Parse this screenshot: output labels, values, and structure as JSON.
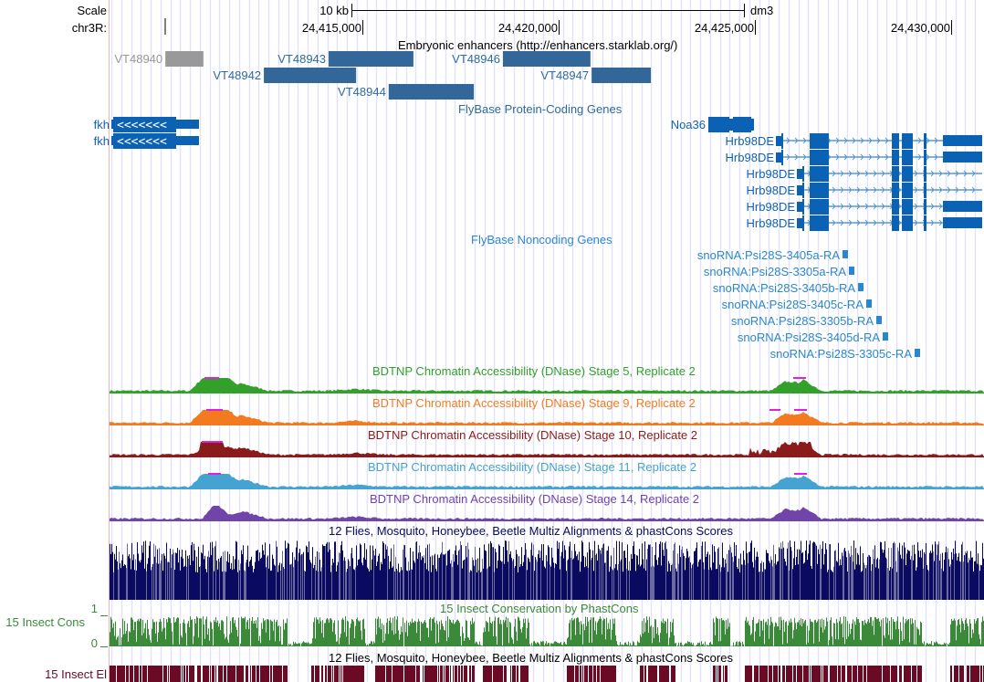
{
  "ruler": {
    "scale_label": "Scale",
    "scale_value": "10 kb",
    "assembly": "dm3",
    "chrom_label": "chr3R:",
    "ticks": [
      "24,415,000",
      "24,420,000",
      "24,425,000",
      "24,430,000"
    ]
  },
  "tracks": {
    "enhancers": {
      "title": "Embryonic enhancers (http://enhancers.starklab.org/)",
      "color": "#336699",
      "items": [
        {
          "name": "VT48940",
          "start": 24409980,
          "end": 24410950,
          "row": 0,
          "color": "#999999"
        },
        {
          "name": "VT48943",
          "start": 24414140,
          "end": 24416300,
          "row": 0
        },
        {
          "name": "VT48946",
          "start": 24418580,
          "end": 24420810,
          "row": 0
        },
        {
          "name": "VT48942",
          "start": 24412490,
          "end": 24414840,
          "row": 1
        },
        {
          "name": "VT48947",
          "start": 24420840,
          "end": 24422350,
          "row": 1
        },
        {
          "name": "VT48944",
          "start": 24415670,
          "end": 24417840,
          "row": 2
        }
      ]
    },
    "coding": {
      "title": "FlyBase Protein-Coding Genes",
      "color": "#0b62b5",
      "genes": [
        {
          "name": "fkh",
          "row": 0
        },
        {
          "name": "fkh",
          "row": 1
        },
        {
          "name": "Noa36",
          "row": 0
        },
        {
          "name": "Hrb98DE",
          "row": 1,
          "long_start": true,
          "full": true
        },
        {
          "name": "Hrb98DE",
          "row": 2,
          "long_start": true,
          "full": true
        },
        {
          "name": "Hrb98DE",
          "row": 3,
          "full": false
        },
        {
          "name": "Hrb98DE",
          "row": 4,
          "full": false
        },
        {
          "name": "Hrb98DE",
          "row": 5,
          "full": true
        },
        {
          "name": "Hrb98DE",
          "row": 6,
          "full": true
        }
      ]
    },
    "noncoding": {
      "title": "FlyBase Noncoding Genes",
      "color": "#2b86d0",
      "items": [
        "snoRNA:Psi28S-3405a-RA",
        "snoRNA:Psi28S-3305a-RA",
        "snoRNA:Psi28S-3405b-RA",
        "snoRNA:Psi28S-3405c-RA",
        "snoRNA:Psi28S-3305b-RA",
        "snoRNA:Psi28S-3405d-RA",
        "snoRNA:Psi28S-3305c-RA"
      ]
    },
    "dnase": [
      {
        "title": "BDTNP Chromatin Accessibility (DNase) Stage 5, Replicate 2",
        "color": "#33a02c"
      },
      {
        "title": "BDTNP Chromatin Accessibility (DNase) Stage 9, Replicate 2",
        "color": "#f47a20"
      },
      {
        "title": "BDTNP Chromatin Accessibility (DNase) Stage 10, Replicate 2",
        "color": "#8b1a1a"
      },
      {
        "title": "BDTNP Chromatin Accessibility (DNase) Stage 11, Replicate 2",
        "color": "#44a3d0"
      },
      {
        "title": "BDTNP Chromatin Accessibility (DNase) Stage 14, Replicate 2",
        "color": "#7044a8"
      }
    ],
    "multiz": {
      "title": "12 Flies, Mosquito, Honeybee, Beetle Multiz Alignments & phastCons Scores",
      "color": "#0a0a60"
    },
    "cons": {
      "label": "15 Insect Cons",
      "title": "15 Insect Conservation by PhastCons",
      "ymax": "1",
      "ymin": "0",
      "color": "#3a8a3a"
    },
    "elements": {
      "label": "15 Insect El",
      "title": "12 Flies, Mosquito, Honeybee, Beetle Multiz Alignments & phastCons Scores",
      "color": "#6b0a24"
    }
  }
}
